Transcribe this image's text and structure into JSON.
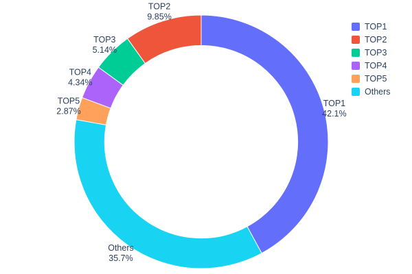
{
  "chart_data": {
    "type": "pie",
    "title": "",
    "hole_ratio": 0.76,
    "labels": [
      "TOP1",
      "TOP2",
      "TOP3",
      "TOP4",
      "TOP5",
      "Others"
    ],
    "values": [
      42.1,
      9.85,
      5.14,
      4.34,
      2.87,
      35.7
    ],
    "percent_labels": [
      "42.1%",
      "9.85%",
      "5.14%",
      "4.34%",
      "2.87%",
      "35.7%"
    ],
    "colors": [
      "#636EFA",
      "#EF553B",
      "#00CC96",
      "#AB63FA",
      "#FFA15A",
      "#19D3F3"
    ],
    "slice_order_clockwise_from_top": [
      0,
      5,
      4,
      3,
      2,
      1
    ],
    "legend": {
      "position": "top-right",
      "entries": [
        "TOP1",
        "TOP2",
        "TOP3",
        "TOP4",
        "TOP5",
        "Others"
      ]
    },
    "text_color": "#2a3f5f",
    "background": "#ffffff",
    "grid": false
  }
}
